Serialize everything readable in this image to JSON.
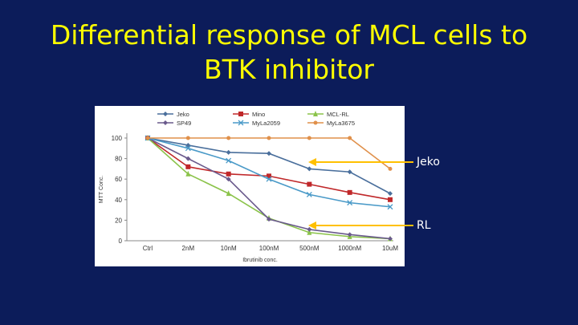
{
  "slide": {
    "title_line1": "Differential response of MCL cells to",
    "title_line2": "BTK inhibitor",
    "title_color": "#ffff00",
    "background": "#0c1c5a"
  },
  "callouts": [
    {
      "label": "Jeko",
      "color": "#ffc000"
    },
    {
      "label": "RL",
      "color": "#ffc000"
    }
  ],
  "chart_data": {
    "type": "line",
    "categories": [
      "Ctrl",
      "2nM",
      "10nM",
      "100nM",
      "500nM",
      "1000nM",
      "10uM"
    ],
    "ylabel": "MTT Conc.",
    "xlabel": "Ibrutinib conc.",
    "ylim": [
      0,
      100
    ],
    "yticks": [
      "0",
      "20",
      "40",
      "60",
      "80",
      "100"
    ],
    "grid": false,
    "legend_placement": "top",
    "series": [
      {
        "name": "Jeko",
        "color": "#4a6f9c",
        "marker": "diamond",
        "values": [
          100,
          93,
          86,
          85,
          70,
          67,
          46
        ]
      },
      {
        "name": "Mino",
        "color": "#c0282a",
        "marker": "square",
        "values": [
          100,
          72,
          65,
          63,
          55,
          47,
          40
        ]
      },
      {
        "name": "MCL-RL",
        "color": "#8bc34a",
        "marker": "triangle",
        "values": [
          100,
          65,
          46,
          22,
          8,
          4,
          2
        ]
      },
      {
        "name": "SP49",
        "color": "#6a5a8c",
        "marker": "diamond",
        "values": [
          100,
          80,
          60,
          21,
          11,
          6,
          2
        ]
      },
      {
        "name": "MyLa2059",
        "color": "#4a9ac8",
        "marker": "x",
        "values": [
          100,
          90,
          78,
          60,
          45,
          37,
          33
        ]
      },
      {
        "name": "MyLa3675",
        "color": "#e0904a",
        "marker": "circle",
        "values": [
          100,
          100,
          100,
          100,
          100,
          100,
          70
        ]
      }
    ]
  }
}
